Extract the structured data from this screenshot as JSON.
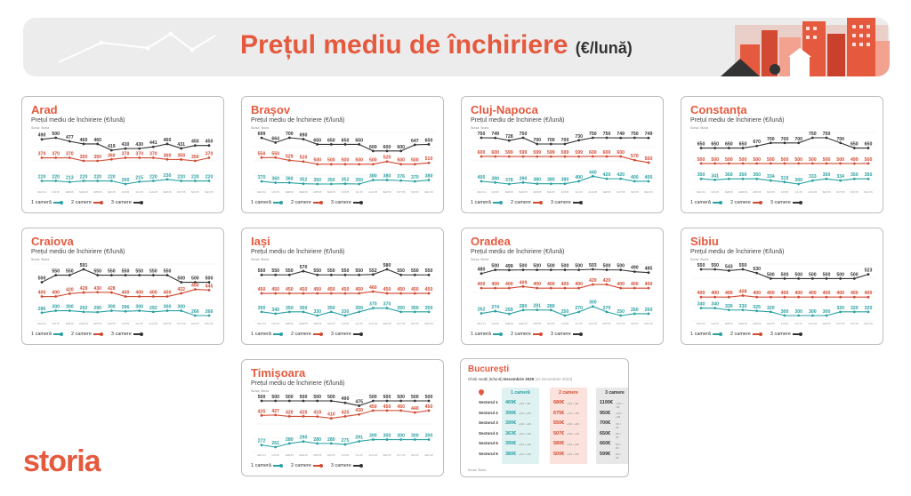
{
  "header": {
    "title": "Prețul mediu de închiriere",
    "unit": "(€/lună)"
  },
  "colors": {
    "accent": "#e55a3e",
    "one_room": "#2aa1a3",
    "two_rooms": "#d24a33",
    "three_rooms": "#333333"
  },
  "common": {
    "subtitle": "Prețul mediu de închiriere (€/lună)",
    "source": "Sursa: Storia",
    "months": [
      "DEC'24",
      "IAN'25",
      "FEB'25",
      "MAR'25",
      "APR'25",
      "MAI'25",
      "IUN'25",
      "IUL'25",
      "AUG'25",
      "SEP'25",
      "OCT'25",
      "NOI'25",
      "DEC'25"
    ],
    "legend": [
      "1 cameră",
      "2 camere",
      "3 camere"
    ]
  },
  "chart_data": [
    {
      "type": "line",
      "title": "Arad",
      "series": [
        {
          "name": "3 camere",
          "values": [
            490,
            500,
            477,
            460,
            460,
            419,
            430,
            430,
            441,
            460,
            431,
            450,
            450
          ]
        },
        {
          "name": "2 camere",
          "values": [
            370,
            370,
            370,
            350,
            350,
            360,
            370,
            370,
            370,
            360,
            359,
            350,
            370
          ]
        },
        {
          "name": "1 cameră",
          "values": [
            220,
            220,
            213,
            220,
            220,
            220,
            200,
            215,
            220,
            230,
            220,
            220,
            220
          ]
        }
      ]
    },
    {
      "type": "line",
      "title": "Brașov",
      "series": [
        {
          "name": "3 camere",
          "values": [
            699,
            664,
            700,
            690,
            650,
            650,
            650,
            650,
            600,
            600,
            600,
            647,
            650
          ]
        },
        {
          "name": "2 camere",
          "values": [
            550,
            550,
            529,
            520,
            500,
            500,
            500,
            500,
            500,
            520,
            500,
            500,
            510
          ]
        },
        {
          "name": "1 cameră",
          "values": [
            370,
            360,
            360,
            352,
            350,
            350,
            352,
            350,
            380,
            380,
            376,
            370,
            380
          ]
        }
      ]
    },
    {
      "type": "line",
      "title": "Cluj-Napoca",
      "series": [
        {
          "name": "3 camere",
          "values": [
            750,
            749,
            728,
            750,
            700,
            700,
            700,
            730,
            750,
            750,
            749,
            750,
            749
          ]
        },
        {
          "name": "2 camere",
          "values": [
            600,
            600,
            599,
            599,
            599,
            599,
            599,
            599,
            600,
            600,
            600,
            570,
            550
          ]
        },
        {
          "name": "1 cameră",
          "values": [
            400,
            390,
            378,
            390,
            380,
            380,
            380,
            400,
            440,
            420,
            420,
            400,
            400
          ]
        }
      ]
    },
    {
      "type": "line",
      "title": "Constanța",
      "series": [
        {
          "name": "3 camere",
          "values": [
            650,
            650,
            650,
            650,
            670,
            700,
            700,
            700,
            750,
            750,
            700,
            650,
            650
          ]
        },
        {
          "name": "2 camere",
          "values": [
            500,
            500,
            500,
            500,
            500,
            500,
            500,
            500,
            500,
            500,
            500,
            499,
            500
          ]
        },
        {
          "name": "1 cameră",
          "values": [
            350,
            341,
            350,
            350,
            350,
            334,
            319,
            300,
            333,
            350,
            334,
            350,
            350
          ]
        }
      ]
    },
    {
      "type": "line",
      "title": "Craiova",
      "series": [
        {
          "name": "3 camere",
          "values": [
            500,
            550,
            550,
            591,
            550,
            550,
            550,
            550,
            550,
            550,
            500,
            500,
            500
          ]
        },
        {
          "name": "2 camere",
          "values": [
            400,
            400,
            420,
            428,
            430,
            428,
            400,
            400,
            400,
            400,
            422,
            450,
            445
          ]
        },
        {
          "name": "1 cameră",
          "values": [
            286,
            300,
            300,
            292,
            290,
            300,
            296,
            300,
            292,
            300,
            300,
            266,
            266
          ]
        }
      ]
    },
    {
      "type": "line",
      "title": "Iași",
      "series": [
        {
          "name": "3 camere",
          "values": [
            550,
            550,
            550,
            570,
            550,
            550,
            550,
            550,
            552,
            580,
            550,
            550,
            550
          ]
        },
        {
          "name": "2 camere",
          "values": [
            450,
            450,
            450,
            450,
            450,
            450,
            450,
            450,
            460,
            450,
            450,
            450,
            450
          ]
        },
        {
          "name": "1 cameră",
          "values": [
            350,
            340,
            350,
            350,
            330,
            350,
            330,
            350,
            370,
            370,
            350,
            350,
            350
          ]
        }
      ]
    },
    {
      "type": "line",
      "title": "Oradea",
      "series": [
        {
          "name": "3 camere",
          "values": [
            480,
            500,
            499,
            500,
            500,
            500,
            500,
            500,
            503,
            500,
            500,
            490,
            485
          ]
        },
        {
          "name": "2 camere",
          "values": [
            400,
            400,
            400,
            409,
            400,
            400,
            400,
            400,
            420,
            420,
            400,
            400,
            400
          ]
        },
        {
          "name": "1 cameră",
          "values": [
            262,
            274,
            259,
            280,
            281,
            280,
            250,
            270,
            300,
            270,
            250,
            260,
            260
          ]
        }
      ]
    },
    {
      "type": "line",
      "title": "Sibiu",
      "series": [
        {
          "name": "3 camere",
          "values": [
            550,
            550,
            543,
            550,
            530,
            500,
            500,
            500,
            500,
            500,
            500,
            500,
            523
          ]
        },
        {
          "name": "2 camere",
          "values": [
            400,
            400,
            400,
            408,
            400,
            400,
            400,
            400,
            400,
            400,
            400,
            400,
            400
          ]
        },
        {
          "name": "1 cameră",
          "values": [
            340,
            340,
            330,
            330,
            325,
            320,
            300,
            300,
            300,
            300,
            320,
            320,
            320
          ]
        }
      ]
    },
    {
      "type": "line",
      "title": "Timișoara",
      "series": [
        {
          "name": "3 camere",
          "values": [
            500,
            500,
            500,
            500,
            500,
            500,
            490,
            475,
            500,
            500,
            500,
            500,
            500
          ]
        },
        {
          "name": "2 camere",
          "values": [
            425,
            427,
            420,
            420,
            419,
            410,
            420,
            430,
            450,
            450,
            450,
            440,
            450
          ]
        },
        {
          "name": "1 cameră",
          "values": [
            272,
            261,
            280,
            290,
            280,
            280,
            275,
            291,
            300,
            300,
            300,
            300,
            300
          ]
        }
      ]
    }
  ],
  "bucuresti": {
    "title": "București",
    "subtitle": "Chirii medii (€/lună)",
    "date_label": "Decembrie 2025",
    "note": "(vs Decembrie 2024)",
    "source": "Sursa: Storia",
    "headers": [
      "1 cameră",
      "2 camere",
      "3 camere"
    ],
    "rows": [
      {
        "sector": "Sectorul 1",
        "v1": "469€",
        "c1": "+4% / -6€",
        "v2": "680€",
        "c2": "+0% / -3€",
        "v3": "1100€",
        "c3": "+0% / -0€"
      },
      {
        "sector": "Sectorul 2",
        "v1": "390€",
        "c1": "+3% / +2€",
        "v2": "675€",
        "c2": "+1% / +5€",
        "v3": "950€",
        "c3": "+0% / +0€"
      },
      {
        "sector": "Sectorul 3",
        "v1": "390€",
        "c1": "+3% / +2€",
        "v2": "550€",
        "c2": "+0% / +0€",
        "v3": "700€",
        "c3": "0% / 0€"
      },
      {
        "sector": "Sectorul 4",
        "v1": "363€",
        "c1": "+2% / +5€",
        "v2": "507€",
        "c2": "+0% / +7€",
        "v3": "650€",
        "c3": "0% / 0€"
      },
      {
        "sector": "Sectorul 5",
        "v1": "390€",
        "c1": "+3% / +2€",
        "v2": "580€",
        "c2": "+0% / +0€",
        "v3": "660€",
        "c3": "0% / 0€"
      },
      {
        "sector": "Sectorul 6",
        "v1": "380€",
        "c1": "+3% / +2€",
        "v2": "500€",
        "c2": "+0% / +0€",
        "v3": "599€",
        "c3": "0% / 0€"
      }
    ]
  },
  "logo": {
    "text": "storia"
  }
}
